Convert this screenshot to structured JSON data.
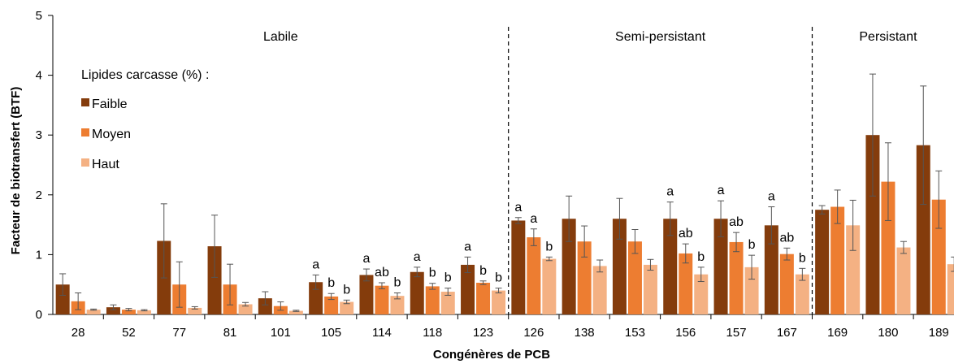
{
  "chart_data": {
    "type": "bar",
    "title": "",
    "xlabel": "Congénères de PCB",
    "ylabel": "Facteur de biotransfert (BTF)",
    "ylim": [
      0,
      5
    ],
    "yticks": [
      0,
      1,
      2,
      3,
      4,
      5
    ],
    "grid": false,
    "legend_title": "Lipides carcasse (%) :",
    "legend_position": "top-left",
    "categories": [
      "28",
      "52",
      "77",
      "81",
      "101",
      "105",
      "114",
      "118",
      "123",
      "126",
      "138",
      "153",
      "156",
      "157",
      "167",
      "169",
      "180",
      "189"
    ],
    "series": [
      {
        "name": "Faible",
        "color": "#843C0C",
        "values": [
          0.5,
          0.12,
          1.23,
          1.14,
          0.27,
          0.54,
          0.66,
          0.71,
          0.83,
          1.57,
          1.6,
          1.6,
          1.6,
          1.6,
          1.49,
          1.75,
          3.0,
          2.83
        ],
        "errors": [
          0.18,
          0.04,
          0.62,
          0.52,
          0.11,
          0.12,
          0.1,
          0.08,
          0.13,
          0.05,
          0.38,
          0.34,
          0.28,
          0.3,
          0.31,
          0.07,
          1.02,
          0.99
        ]
      },
      {
        "name": "Moyen",
        "color": "#ED7D31",
        "values": [
          0.22,
          0.08,
          0.5,
          0.5,
          0.14,
          0.3,
          0.48,
          0.47,
          0.53,
          1.29,
          1.22,
          1.22,
          1.02,
          1.21,
          1.01,
          1.8,
          2.22,
          1.92
        ],
        "errors": [
          0.14,
          0.02,
          0.38,
          0.34,
          0.07,
          0.05,
          0.05,
          0.05,
          0.03,
          0.14,
          0.26,
          0.2,
          0.16,
          0.16,
          0.1,
          0.28,
          0.65,
          0.48
        ]
      },
      {
        "name": "Haut",
        "color": "#F4B183",
        "values": [
          0.08,
          0.07,
          0.11,
          0.17,
          0.06,
          0.21,
          0.31,
          0.38,
          0.4,
          0.93,
          0.81,
          0.83,
          0.67,
          0.79,
          0.67,
          1.49,
          1.12,
          0.84
        ],
        "errors": [
          0.01,
          0.01,
          0.02,
          0.03,
          0.01,
          0.03,
          0.05,
          0.06,
          0.04,
          0.03,
          0.1,
          0.09,
          0.12,
          0.2,
          0.1,
          0.42,
          0.1,
          0.12
        ]
      }
    ],
    "groups": [
      {
        "label": "Labile",
        "from": 0,
        "to": 8
      },
      {
        "label": "Semi-persistant",
        "from": 9,
        "to": 14
      },
      {
        "label": "Persistant",
        "from": 15,
        "to": 17
      }
    ],
    "annotations": [
      {
        "cat": 5,
        "series": 0,
        "text": "a"
      },
      {
        "cat": 5,
        "series": 1,
        "text": "b"
      },
      {
        "cat": 5,
        "series": 2,
        "text": "b"
      },
      {
        "cat": 6,
        "series": 0,
        "text": "a"
      },
      {
        "cat": 6,
        "series": 1,
        "text": "ab"
      },
      {
        "cat": 6,
        "series": 2,
        "text": "b"
      },
      {
        "cat": 7,
        "series": 0,
        "text": "a"
      },
      {
        "cat": 7,
        "series": 1,
        "text": "b"
      },
      {
        "cat": 7,
        "series": 2,
        "text": "b"
      },
      {
        "cat": 8,
        "series": 0,
        "text": "a"
      },
      {
        "cat": 8,
        "series": 1,
        "text": "b"
      },
      {
        "cat": 8,
        "series": 2,
        "text": "b"
      },
      {
        "cat": 9,
        "series": 0,
        "text": "a"
      },
      {
        "cat": 9,
        "series": 1,
        "text": "a"
      },
      {
        "cat": 9,
        "series": 2,
        "text": "b"
      },
      {
        "cat": 12,
        "series": 0,
        "text": "a"
      },
      {
        "cat": 12,
        "series": 1,
        "text": "ab"
      },
      {
        "cat": 12,
        "series": 2,
        "text": "b"
      },
      {
        "cat": 13,
        "series": 0,
        "text": "a"
      },
      {
        "cat": 13,
        "series": 1,
        "text": "ab"
      },
      {
        "cat": 13,
        "series": 2,
        "text": "b"
      },
      {
        "cat": 14,
        "series": 0,
        "text": "a"
      },
      {
        "cat": 14,
        "series": 1,
        "text": "ab"
      },
      {
        "cat": 14,
        "series": 2,
        "text": "b"
      }
    ]
  }
}
